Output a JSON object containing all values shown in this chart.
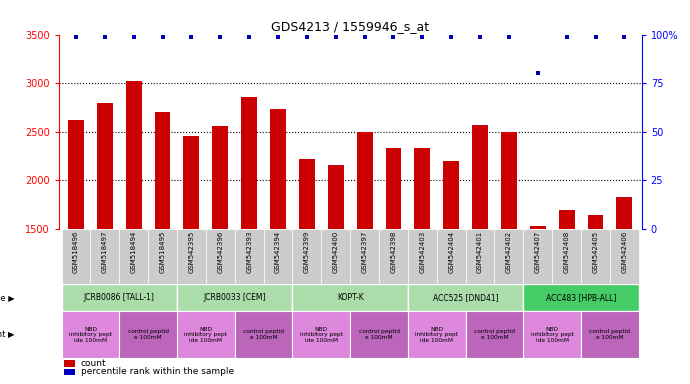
{
  "title": "GDS4213 / 1559946_s_at",
  "gsm_labels": [
    "GSM518496",
    "GSM518497",
    "GSM518494",
    "GSM518495",
    "GSM542395",
    "GSM542396",
    "GSM542393",
    "GSM542394",
    "GSM542399",
    "GSM542400",
    "GSM542397",
    "GSM542398",
    "GSM542403",
    "GSM542404",
    "GSM542401",
    "GSM542402",
    "GSM542407",
    "GSM542408",
    "GSM542405",
    "GSM542406"
  ],
  "counts": [
    2620,
    2800,
    3020,
    2700,
    2460,
    2560,
    2860,
    2730,
    2220,
    2160,
    2500,
    2330,
    2330,
    2200,
    2570,
    2500,
    1530,
    1700,
    1640,
    1830
  ],
  "percentile_ranks": [
    99,
    99,
    99,
    99,
    99,
    99,
    99,
    99,
    99,
    99,
    99,
    99,
    99,
    99,
    99,
    99,
    80,
    99,
    99,
    99
  ],
  "bar_color": "#cc0000",
  "dot_color": "#0000bb",
  "ylim_left": [
    1500,
    3500
  ],
  "ylim_right": [
    0,
    100
  ],
  "yticks_left": [
    1500,
    2000,
    2500,
    3000,
    3500
  ],
  "yticks_right": [
    0,
    25,
    50,
    75,
    100
  ],
  "cell_lines": [
    {
      "label": "JCRB0086 [TALL-1]",
      "start": 0,
      "end": 4,
      "color": "#aaddaa"
    },
    {
      "label": "JCRB0033 [CEM]",
      "start": 4,
      "end": 8,
      "color": "#aaddaa"
    },
    {
      "label": "KOPT-K",
      "start": 8,
      "end": 12,
      "color": "#aaddaa"
    },
    {
      "label": "ACC525 [DND41]",
      "start": 12,
      "end": 16,
      "color": "#aaddaa"
    },
    {
      "label": "ACC483 [HPB-ALL]",
      "start": 16,
      "end": 20,
      "color": "#44cc66"
    }
  ],
  "agents": [
    {
      "label": "NBD\ninhibitory pept\nide 100mM",
      "start": 0,
      "end": 2,
      "color": "#dd88dd"
    },
    {
      "label": "control peptid\ne 100mM",
      "start": 2,
      "end": 4,
      "color": "#bb66bb"
    },
    {
      "label": "NBD\ninhibitory pept\nide 100mM",
      "start": 4,
      "end": 6,
      "color": "#dd88dd"
    },
    {
      "label": "control peptid\ne 100mM",
      "start": 6,
      "end": 8,
      "color": "#bb66bb"
    },
    {
      "label": "NBD\ninhibitory pept\nide 100mM",
      "start": 8,
      "end": 10,
      "color": "#dd88dd"
    },
    {
      "label": "control peptid\ne 100mM",
      "start": 10,
      "end": 12,
      "color": "#bb66bb"
    },
    {
      "label": "NBD\ninhibitory pept\nide 100mM",
      "start": 12,
      "end": 14,
      "color": "#dd88dd"
    },
    {
      "label": "control peptid\ne 100mM",
      "start": 14,
      "end": 16,
      "color": "#bb66bb"
    },
    {
      "label": "NBD\ninhibitory pept\nide 100mM",
      "start": 16,
      "end": 18,
      "color": "#dd88dd"
    },
    {
      "label": "control peptid\ne 100mM",
      "start": 18,
      "end": 20,
      "color": "#bb66bb"
    }
  ],
  "grid_dotted_values": [
    2000,
    2500,
    3000
  ],
  "legend_count_color": "#cc0000",
  "legend_dot_color": "#0000bb",
  "tick_bg_color": "#cccccc"
}
